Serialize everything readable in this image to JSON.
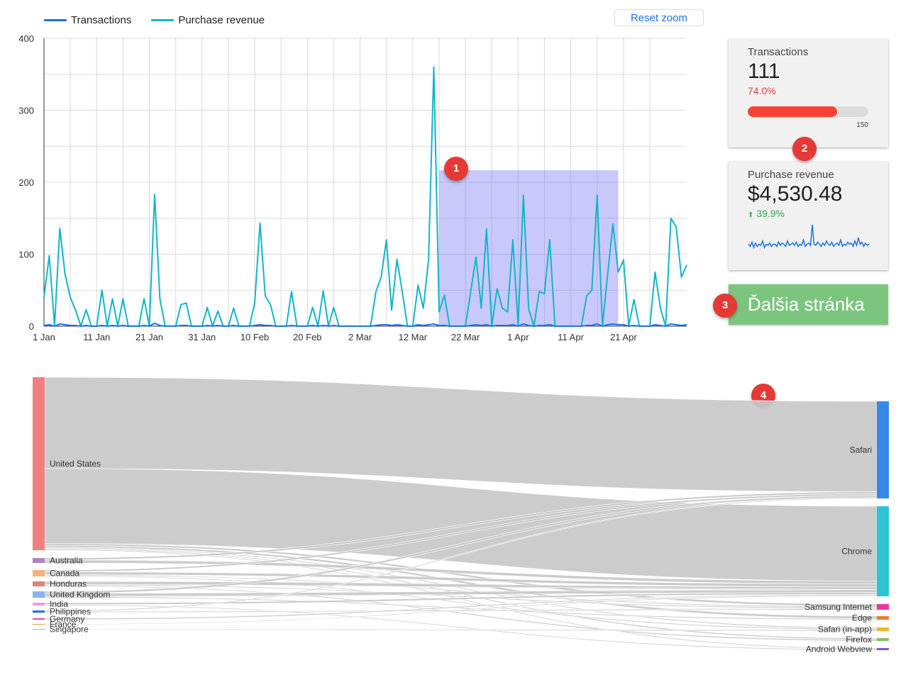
{
  "legend": {
    "items": [
      {
        "label": "Transactions",
        "color": "#1a73e8"
      },
      {
        "label": "Purchase revenue",
        "color": "#12b5cb"
      }
    ]
  },
  "toolbar": {
    "reset_zoom_label": "Reset zoom"
  },
  "chart_data": {
    "type": "line",
    "x_tick_labels": [
      "1 Jan",
      "11 Jan",
      "21 Jan",
      "31 Jan",
      "10 Feb",
      "20 Feb",
      "2 Mar",
      "12 Mar",
      "22 Mar",
      "1 Apr",
      "11 Apr",
      "21 Apr"
    ],
    "y_tick_labels": [
      "0",
      "100",
      "200",
      "300",
      "400"
    ],
    "ylim": [
      0,
      400
    ],
    "grid": true,
    "legend_position": "top-left",
    "selection_range": [
      "17 Mar",
      "20 Apr"
    ],
    "series": [
      {
        "name": "Purchase revenue",
        "color": "#12b5cb",
        "values": [
          40,
          98,
          0,
          136,
          72,
          40,
          22,
          0,
          23,
          0,
          0,
          50,
          0,
          38,
          0,
          38,
          0,
          0,
          0,
          38,
          0,
          183,
          38,
          0,
          0,
          0,
          30,
          32,
          0,
          0,
          0,
          26,
          0,
          21,
          0,
          0,
          25,
          0,
          0,
          0,
          32,
          143,
          42,
          30,
          0,
          0,
          0,
          48,
          0,
          0,
          0,
          26,
          0,
          49,
          0,
          26,
          0,
          0,
          0,
          0,
          0,
          0,
          0,
          48,
          68,
          120,
          22,
          93,
          48,
          0,
          0,
          57,
          25,
          92,
          360,
          20,
          43,
          0,
          0,
          0,
          0,
          48,
          96,
          25,
          135,
          0,
          52,
          25,
          20,
          120,
          0,
          182,
          24,
          0,
          48,
          45,
          120,
          0,
          0,
          0,
          0,
          0,
          0,
          42,
          50,
          182,
          0,
          72,
          142,
          75,
          92,
          0,
          37,
          0,
          0,
          0,
          75,
          25,
          0,
          150,
          138,
          68,
          85
        ]
      },
      {
        "name": "Transactions",
        "color": "#1a73e8",
        "values": [
          1,
          2,
          0,
          3,
          2,
          1,
          1,
          0,
          1,
          0,
          0,
          1,
          0,
          1,
          0,
          1,
          0,
          0,
          0,
          1,
          0,
          4,
          1,
          0,
          0,
          0,
          1,
          1,
          0,
          0,
          0,
          1,
          0,
          1,
          0,
          0,
          1,
          0,
          0,
          0,
          1,
          2,
          1,
          1,
          0,
          0,
          0,
          1,
          0,
          0,
          0,
          1,
          0,
          1,
          0,
          1,
          0,
          0,
          0,
          0,
          0,
          0,
          0,
          1,
          2,
          2,
          1,
          2,
          1,
          0,
          0,
          2,
          1,
          2,
          3,
          1,
          1,
          0,
          0,
          0,
          0,
          1,
          2,
          1,
          2,
          0,
          1,
          1,
          1,
          2,
          0,
          3,
          1,
          0,
          1,
          1,
          2,
          0,
          0,
          0,
          0,
          0,
          0,
          1,
          1,
          3,
          0,
          2,
          3,
          2,
          2,
          0,
          1,
          0,
          0,
          0,
          2,
          1,
          0,
          3,
          2,
          1,
          2
        ]
      }
    ]
  },
  "scorecards": {
    "transactions": {
      "label": "Transactions",
      "value": "111",
      "delta": "74.0%",
      "progress_fraction": 0.74,
      "target": "150"
    },
    "revenue": {
      "label": "Purchase revenue",
      "value": "$4,530.48",
      "delta_arrow": "⬆",
      "delta": "39.9%",
      "sparkline": [
        12,
        10,
        14,
        9,
        13,
        10,
        12,
        11,
        15,
        9,
        12,
        11,
        13,
        10,
        12,
        12,
        10,
        14,
        11,
        13,
        12,
        10,
        15,
        11,
        12,
        13,
        11,
        14,
        10,
        12,
        11,
        16,
        10,
        12,
        13,
        11,
        30,
        12,
        11,
        14,
        12,
        10,
        13,
        11,
        15,
        12,
        11,
        14,
        10,
        12,
        13,
        11,
        16,
        10,
        12,
        11,
        14,
        12,
        13,
        10,
        15,
        11,
        18,
        12,
        14,
        10,
        13,
        11,
        12
      ]
    }
  },
  "navigation": {
    "next_page_label": "Ďalšia stránka"
  },
  "markers": [
    "1",
    "2",
    "3",
    "4"
  ],
  "sankey": {
    "sources": [
      {
        "label": "United States",
        "color": "#f08080",
        "value": 180
      },
      {
        "label": "Australia",
        "color": "#b083c4",
        "value": 5
      },
      {
        "label": "Canada",
        "color": "#f4b37a",
        "value": 7
      },
      {
        "label": "Honduras",
        "color": "#d98876",
        "value": 5
      },
      {
        "label": "United Kingdom",
        "color": "#8cb4e6",
        "value": 6
      },
      {
        "label": "India",
        "color": "#f29fce",
        "value": 3
      },
      {
        "label": "Philippines",
        "color": "#1a73e8",
        "value": 2
      },
      {
        "label": "Germany",
        "color": "#d64fa3",
        "value": 1
      },
      {
        "label": "France",
        "color": "#e8a13a",
        "value": 1
      },
      {
        "label": "Singapore",
        "color": "#b0b0b0",
        "value": 1
      }
    ],
    "targets": [
      {
        "label": "Safari",
        "color": "#3789e8",
        "value": 102
      },
      {
        "label": "Chrome",
        "color": "#2ec4d4",
        "value": 94
      },
      {
        "label": "Samsung Internet",
        "color": "#e8369d",
        "value": 5
      },
      {
        "label": "Edge",
        "color": "#f07b2a",
        "value": 3
      },
      {
        "label": "Safari (in-app)",
        "color": "#f2b230",
        "value": 3
      },
      {
        "label": "Firefox",
        "color": "#7cc25e",
        "value": 2
      },
      {
        "label": "Android Webview",
        "color": "#7d5bd6",
        "value": 2
      }
    ],
    "link_color": "#c8c8c8",
    "links": [
      [
        "United States",
        "Safari",
        95
      ],
      [
        "United States",
        "Chrome",
        78
      ],
      [
        "United States",
        "Samsung Internet",
        2
      ],
      [
        "United States",
        "Edge",
        2
      ],
      [
        "United States",
        "Safari (in-app)",
        1
      ],
      [
        "United States",
        "Firefox",
        1
      ],
      [
        "United States",
        "Android Webview",
        1
      ],
      [
        "Australia",
        "Safari",
        2
      ],
      [
        "Australia",
        "Chrome",
        3
      ],
      [
        "Canada",
        "Safari",
        2
      ],
      [
        "Canada",
        "Chrome",
        3
      ],
      [
        "Canada",
        "Samsung Internet",
        1
      ],
      [
        "Canada",
        "Safari (in-app)",
        1
      ],
      [
        "Honduras",
        "Chrome",
        3
      ],
      [
        "Honduras",
        "Samsung Internet",
        1
      ],
      [
        "Honduras",
        "Firefox",
        1
      ],
      [
        "United Kingdom",
        "Safari",
        2
      ],
      [
        "United Kingdom",
        "Chrome",
        3
      ],
      [
        "United Kingdom",
        "Edge",
        1
      ],
      [
        "India",
        "Chrome",
        2
      ],
      [
        "India",
        "Android Webview",
        1
      ],
      [
        "Philippines",
        "Safari",
        1
      ],
      [
        "Philippines",
        "Samsung Internet",
        1
      ],
      [
        "Germany",
        "Chrome",
        1
      ],
      [
        "France",
        "Chrome",
        1
      ],
      [
        "Singapore",
        "Safari (in-app)",
        1
      ]
    ]
  }
}
